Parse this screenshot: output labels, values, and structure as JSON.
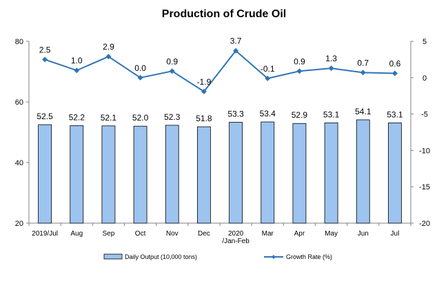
{
  "chart_data": {
    "type": "bar",
    "title": "Production of Crude Oil",
    "categories": [
      [
        "2019/Jul"
      ],
      [
        "Aug"
      ],
      [
        "Sep"
      ],
      [
        "Oct"
      ],
      [
        "Nov"
      ],
      [
        "Dec"
      ],
      [
        "2020",
        "/Jan-Feb"
      ],
      [
        "Mar"
      ],
      [
        "Apr"
      ],
      [
        "May"
      ],
      [
        "Jun"
      ],
      [
        "Jul"
      ]
    ],
    "series": [
      {
        "name": "Daily Output (10,000 tons)",
        "type": "bar",
        "axis": "left",
        "color": "#9DC3EF",
        "values": [
          52.5,
          52.2,
          52.1,
          52.0,
          52.3,
          51.8,
          53.3,
          53.4,
          52.9,
          53.1,
          54.1,
          53.1
        ]
      },
      {
        "name": "Growth Rate (%)",
        "type": "line",
        "axis": "right",
        "color": "#2E75B6",
        "values": [
          2.5,
          1.0,
          2.9,
          0.0,
          0.9,
          -1.9,
          3.7,
          -0.1,
          0.9,
          1.3,
          0.7,
          0.6
        ]
      }
    ],
    "y_left": {
      "min": 20,
      "max": 80,
      "ticks": [
        20,
        40,
        60,
        80
      ]
    },
    "y_right": {
      "min": -20,
      "max": 5,
      "ticks": [
        5,
        0,
        -5,
        -10,
        -15,
        -20
      ]
    },
    "grid": false,
    "legend": "bottom"
  }
}
